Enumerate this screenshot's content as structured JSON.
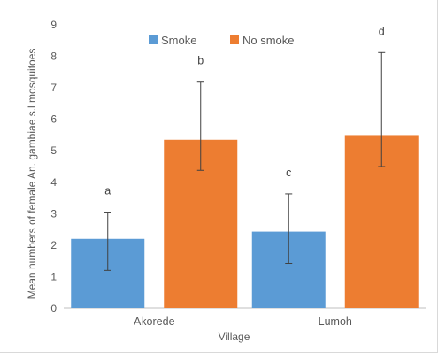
{
  "chart_data": {
    "type": "bar",
    "xlabel": "Village",
    "ylabel": "Mean numbers of female An. gambiae s.l mosquitoes",
    "categories": [
      "Akorede",
      "Lumoh"
    ],
    "ylim": [
      0,
      9
    ],
    "yticks": [
      0,
      1,
      2,
      3,
      4,
      5,
      6,
      7,
      8,
      9
    ],
    "grid": false,
    "legend_position": "top",
    "series": [
      {
        "name": "Smoke",
        "color": "#5b9bd5",
        "values": [
          2.2,
          2.43
        ],
        "error_low": [
          1.2,
          1.42
        ],
        "error_high": [
          3.05,
          3.63
        ],
        "labels": [
          "a",
          "c"
        ]
      },
      {
        "name": "No smoke",
        "color": "#ed7d31",
        "values": [
          5.35,
          5.5
        ],
        "error_low": [
          4.38,
          4.5
        ],
        "error_high": [
          7.18,
          8.12
        ],
        "labels": [
          "b",
          "d"
        ]
      }
    ]
  }
}
